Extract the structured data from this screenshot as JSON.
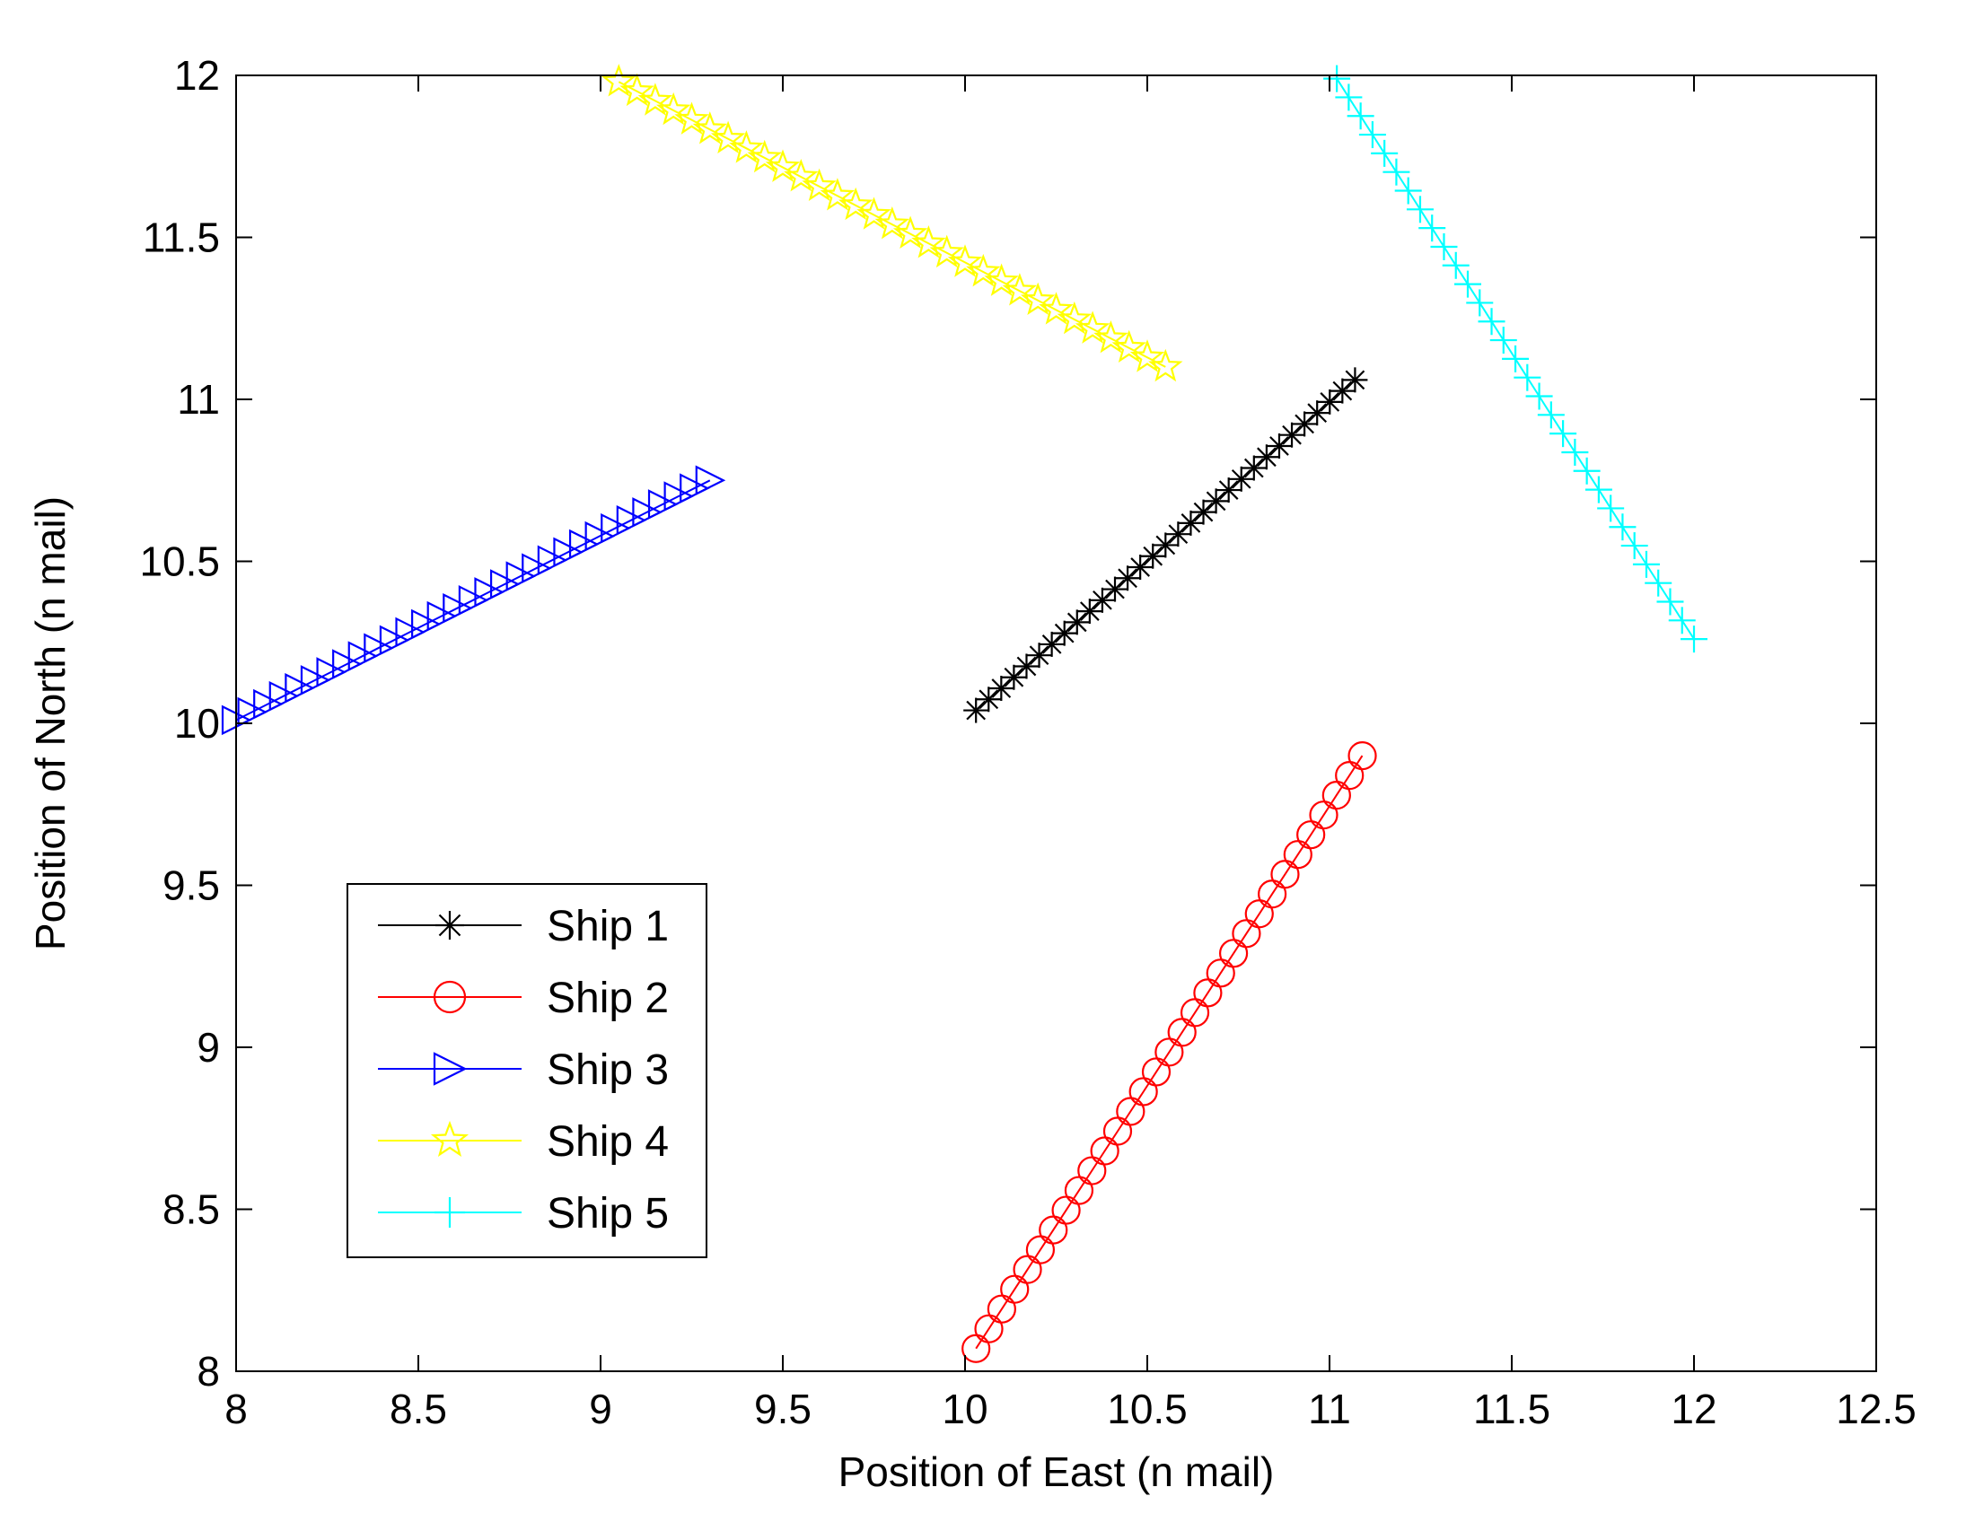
{
  "chart_data": {
    "type": "line",
    "xlabel": "Position of East (n mail)",
    "ylabel": "Position of North (n mail)",
    "xlim": [
      8,
      12.5
    ],
    "ylim": [
      8,
      12
    ],
    "xticks": [
      "8",
      "8.5",
      "9",
      "9.5",
      "10",
      "10.5",
      "11",
      "11.5",
      "12",
      "12.5"
    ],
    "yticks": [
      "8",
      "8.5",
      "9",
      "9.5",
      "10",
      "10.5",
      "11",
      "11.5",
      "12"
    ],
    "grid": false,
    "legend_position": "lower-left",
    "series": [
      {
        "name": "Ship 1",
        "color": "#000000",
        "marker": "asterisk",
        "start": [
          10.03,
          10.04
        ],
        "end": [
          11.07,
          11.06
        ],
        "points": 31
      },
      {
        "name": "Ship 2",
        "color": "#ff0000",
        "marker": "circle",
        "start": [
          10.03,
          8.07
        ],
        "end": [
          11.09,
          9.9
        ],
        "points": 31
      },
      {
        "name": "Ship 3",
        "color": "#0000ff",
        "marker": "triangle-right",
        "start": [
          8.0,
          10.01
        ],
        "end": [
          9.3,
          10.75
        ],
        "points": 31
      },
      {
        "name": "Ship 4",
        "color": "#ffff00",
        "marker": "pentagram",
        "start": [
          9.05,
          11.98
        ],
        "end": [
          10.55,
          11.1
        ],
        "points": 31
      },
      {
        "name": "Ship 5",
        "color": "#00ffff",
        "marker": "plus",
        "start": [
          11.02,
          11.99
        ],
        "end": [
          12.0,
          10.26
        ],
        "points": 31
      }
    ]
  }
}
